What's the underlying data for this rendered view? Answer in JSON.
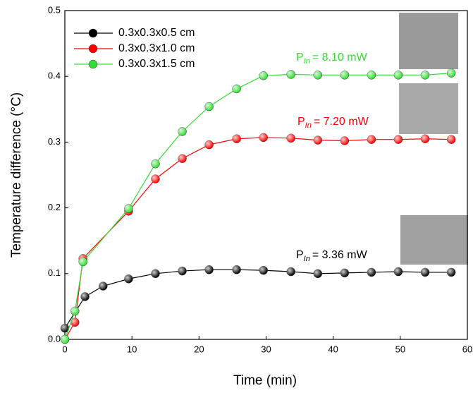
{
  "chart_data": {
    "type": "line",
    "xlabel": "Time (min)",
    "ylabel": "Temperature difference (°C)",
    "xlim": [
      0,
      60
    ],
    "xticks": [
      0,
      10,
      20,
      30,
      40,
      50,
      60
    ],
    "ylim": [
      0,
      0.5
    ],
    "yticks": [
      {
        "value": 0,
        "label": "0.0"
      },
      0.1,
      0.2,
      0.3,
      0.4,
      0.5
    ],
    "series": [
      {
        "name": "0.3x0.3x0.5 cm",
        "color": "#000000",
        "x": [
          0,
          3,
          5.7,
          9.5,
          13.5,
          17.5,
          21.5,
          25.6,
          29.6,
          33.7,
          37.7,
          41.7,
          45.7,
          49.7,
          53.7,
          57.6
        ],
        "values": [
          0.017,
          0.065,
          0.081,
          0.092,
          0.1,
          0.104,
          0.106,
          0.106,
          0.105,
          0.103,
          0.1,
          0.101,
          0.102,
          0.103,
          0.102,
          0.102
        ]
      },
      {
        "name": "0.3x0.3x1.0 cm",
        "color": "#ff0000",
        "x": [
          0,
          1.5,
          2.7,
          9.5,
          13.5,
          17.5,
          21.5,
          25.6,
          29.6,
          33.7,
          37.7,
          41.7,
          45.7,
          49.7,
          53.7,
          57.6
        ],
        "values": [
          0,
          0.026,
          0.123,
          0.195,
          0.244,
          0.275,
          0.296,
          0.305,
          0.307,
          0.306,
          0.303,
          0.302,
          0.304,
          0.304,
          0.305,
          0.304
        ]
      },
      {
        "name": "0.3x0.3x1.5 cm",
        "color": "#33dd33",
        "x": [
          0,
          1.5,
          2.7,
          9.5,
          13.5,
          17.5,
          21.5,
          25.6,
          29.6,
          33.7,
          37.7,
          41.7,
          45.7,
          49.7,
          53.7,
          57.6
        ],
        "values": [
          0,
          0.043,
          0.118,
          0.199,
          0.267,
          0.316,
          0.354,
          0.381,
          0.401,
          0.403,
          0.402,
          0.402,
          0.402,
          0.402,
          0.402,
          0.405
        ]
      }
    ],
    "annotations": [
      {
        "symbol": "P",
        "subscript": "In",
        "text": "= 8.10 mW",
        "color": "#33dd33"
      },
      {
        "symbol": "P",
        "subscript": "In",
        "text": "= 7.20 mW",
        "color": "#ff0000"
      },
      {
        "symbol": "P",
        "subscript": "In",
        "text": "= 3.36 mW",
        "color": "#000000"
      }
    ]
  }
}
